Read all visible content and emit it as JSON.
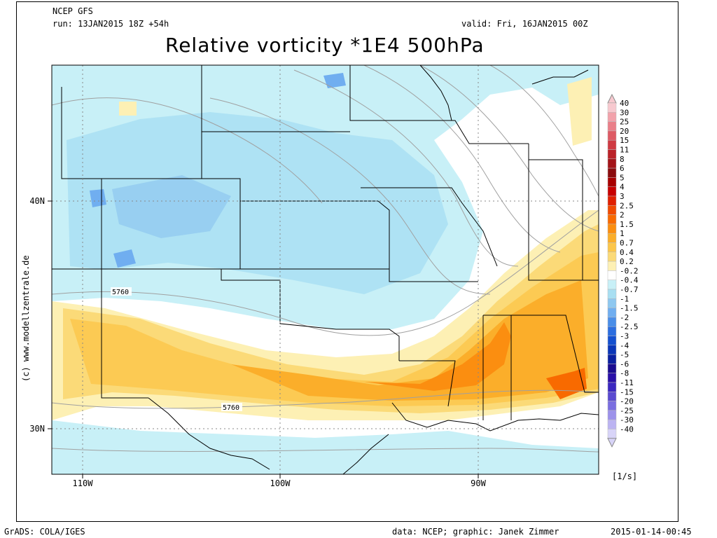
{
  "header": {
    "model": "NCEP GFS",
    "run": "run: 13JAN2015 18Z +54h",
    "valid": "valid: Fri, 16JAN2015 00Z",
    "title": "Relative vorticity *1E4 500hPa"
  },
  "map": {
    "lon_labels": [
      "110W",
      "100W",
      "90W"
    ],
    "lat_labels": [
      "40N",
      "30N"
    ],
    "contour_labels": [
      "5760",
      "5760"
    ],
    "projection_note": "Central United States, 500hPa geopotential height contours (gray) and relative vorticity shading"
  },
  "legend": {
    "unit": "[1/s]",
    "levels": [
      {
        "label": "40",
        "color": "#f7c9cf"
      },
      {
        "label": "30",
        "color": "#f2a2ab"
      },
      {
        "label": "25",
        "color": "#ea7f89"
      },
      {
        "label": "20",
        "color": "#de5a64"
      },
      {
        "label": "15",
        "color": "#cf3a42"
      },
      {
        "label": "11",
        "color": "#bb2228"
      },
      {
        "label": "8",
        "color": "#a31418"
      },
      {
        "label": "6",
        "color": "#8b0c0e"
      },
      {
        "label": "5",
        "color": "#a80000"
      },
      {
        "label": "4",
        "color": "#c80000"
      },
      {
        "label": "3",
        "color": "#e02000"
      },
      {
        "label": "2.5",
        "color": "#f04a00"
      },
      {
        "label": "2",
        "color": "#f86a00"
      },
      {
        "label": "1.5",
        "color": "#fb8e10"
      },
      {
        "label": "1",
        "color": "#fbae2a"
      },
      {
        "label": "0.7",
        "color": "#fcc64a"
      },
      {
        "label": "0.4",
        "color": "#fbda78"
      },
      {
        "label": "0.2",
        "color": "#fdf0b4"
      },
      {
        "label": "-0.2",
        "color": "#ffffff"
      },
      {
        "label": "-0.4",
        "color": "#c8f0f7"
      },
      {
        "label": "-0.7",
        "color": "#a8dff2"
      },
      {
        "label": "-1",
        "color": "#8ec8f0"
      },
      {
        "label": "-1.5",
        "color": "#70aef0"
      },
      {
        "label": "-2",
        "color": "#4a8ee8"
      },
      {
        "label": "-2.5",
        "color": "#2c6ee0"
      },
      {
        "label": "-3",
        "color": "#1450d0"
      },
      {
        "label": "-4",
        "color": "#0a36b8"
      },
      {
        "label": "-5",
        "color": "#0a20a0"
      },
      {
        "label": "-6",
        "color": "#1a0c90"
      },
      {
        "label": "-8",
        "color": "#2a10a8"
      },
      {
        "label": "-11",
        "color": "#3c28c0"
      },
      {
        "label": "-15",
        "color": "#5a4ad0"
      },
      {
        "label": "-20",
        "color": "#7a6ee0"
      },
      {
        "label": "-25",
        "color": "#9c92ea"
      },
      {
        "label": "-30",
        "color": "#bcb4f2"
      },
      {
        "label": "-40",
        "color": "#d8d4f8"
      }
    ]
  },
  "watermark": "(c) www.modellzentrale.de",
  "footer": {
    "left": "GrADS: COLA/IGES",
    "middle": "data: NCEP; graphic: Janek Zimmer",
    "right": "2015-01-14-00:45"
  }
}
